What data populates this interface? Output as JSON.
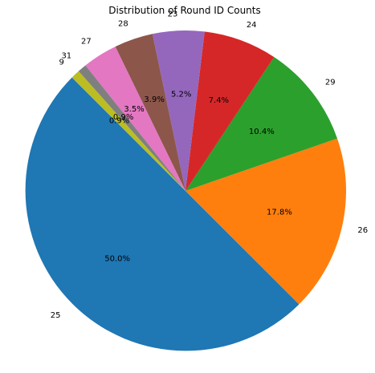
{
  "chart_data": {
    "type": "pie",
    "title": "Distribution of Round ID Counts",
    "start_angle_deg": 135,
    "direction": "counterclockwise",
    "slices": [
      {
        "label": "25",
        "value": 50.0,
        "pct_label": "50.0%",
        "color": "#1f77b4"
      },
      {
        "label": "26",
        "value": 17.8,
        "pct_label": "17.8%",
        "color": "#ff7f0e"
      },
      {
        "label": "29",
        "value": 10.4,
        "pct_label": "10.4%",
        "color": "#2ca02c"
      },
      {
        "label": "24",
        "value": 7.4,
        "pct_label": "7.4%",
        "color": "#d62728"
      },
      {
        "label": "23",
        "value": 5.2,
        "pct_label": "5.2%",
        "color": "#9467bd"
      },
      {
        "label": "28",
        "value": 3.9,
        "pct_label": "3.9%",
        "color": "#8c564b"
      },
      {
        "label": "27",
        "value": 3.5,
        "pct_label": "3.5%",
        "color": "#e377c2"
      },
      {
        "label": "31",
        "value": 0.9,
        "pct_label": "0.9%",
        "color": "#7f7f7f"
      },
      {
        "label": "9",
        "value": 0.9,
        "pct_label": "0.9%",
        "color": "#bcbd22"
      }
    ]
  }
}
